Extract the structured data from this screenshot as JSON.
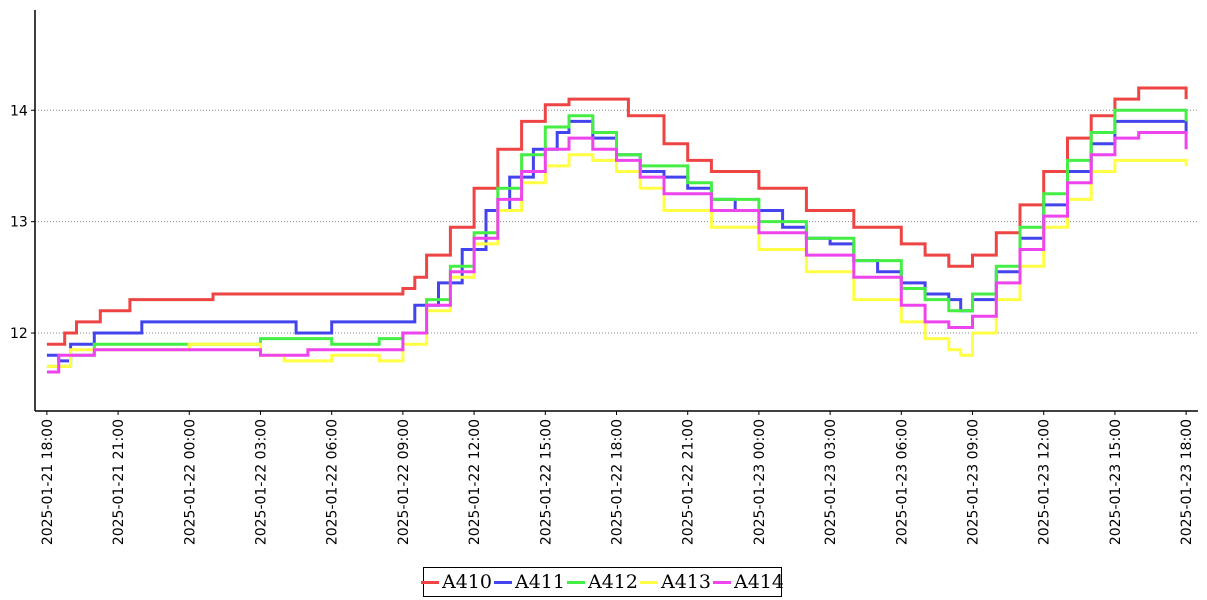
{
  "chart_data": {
    "type": "line",
    "ylim": [
      11.3,
      14.9
    ],
    "yticks": [
      12,
      13,
      14
    ],
    "xlim": [
      "2025-01-21 17:30",
      "2025-01-23 18:30"
    ],
    "xtick_labels": [
      "2025-01-21 18:00",
      "2025-01-21 21:00",
      "2025-01-22 00:00",
      "2025-01-22 03:00",
      "2025-01-22 06:00",
      "2025-01-22 09:00",
      "2025-01-22 12:00",
      "2025-01-22 15:00",
      "2025-01-22 18:00",
      "2025-01-22 21:00",
      "2025-01-23 00:00",
      "2025-01-23 03:00",
      "2025-01-23 06:00",
      "2025-01-23 09:00",
      "2025-01-23 12:00",
      "2025-01-23 15:00",
      "2025-01-23 18:00"
    ],
    "grid": "horizontal dotted",
    "legend_position": "bottom-center",
    "series": [
      {
        "name": "A410",
        "color": "#ee4444",
        "points": [
          [
            "2025-01-21 18:00",
            11.9
          ],
          [
            "2025-01-21 18:45",
            12.0
          ],
          [
            "2025-01-21 19:15",
            12.1
          ],
          [
            "2025-01-21 20:15",
            12.2
          ],
          [
            "2025-01-21 21:30",
            12.3
          ],
          [
            "2025-01-22 01:00",
            12.35
          ],
          [
            "2025-01-22 05:00",
            12.35
          ],
          [
            "2025-01-22 08:00",
            12.35
          ],
          [
            "2025-01-22 09:00",
            12.4
          ],
          [
            "2025-01-22 09:30",
            12.5
          ],
          [
            "2025-01-22 10:00",
            12.7
          ],
          [
            "2025-01-22 11:00",
            12.95
          ],
          [
            "2025-01-22 12:00",
            13.3
          ],
          [
            "2025-01-22 13:00",
            13.65
          ],
          [
            "2025-01-22 14:00",
            13.9
          ],
          [
            "2025-01-22 15:00",
            14.05
          ],
          [
            "2025-01-22 16:00",
            14.1
          ],
          [
            "2025-01-22 17:30",
            14.1
          ],
          [
            "2025-01-22 18:30",
            13.95
          ],
          [
            "2025-01-22 20:00",
            13.7
          ],
          [
            "2025-01-22 21:00",
            13.55
          ],
          [
            "2025-01-22 22:00",
            13.45
          ],
          [
            "2025-01-23 00:00",
            13.3
          ],
          [
            "2025-01-23 02:00",
            13.1
          ],
          [
            "2025-01-23 04:00",
            12.95
          ],
          [
            "2025-01-23 06:00",
            12.8
          ],
          [
            "2025-01-23 07:00",
            12.7
          ],
          [
            "2025-01-23 08:00",
            12.6
          ],
          [
            "2025-01-23 09:00",
            12.7
          ],
          [
            "2025-01-23 10:00",
            12.9
          ],
          [
            "2025-01-23 11:00",
            13.15
          ],
          [
            "2025-01-23 12:00",
            13.45
          ],
          [
            "2025-01-23 13:00",
            13.75
          ],
          [
            "2025-01-23 14:00",
            13.95
          ],
          [
            "2025-01-23 15:00",
            14.1
          ],
          [
            "2025-01-23 16:00",
            14.2
          ],
          [
            "2025-01-23 17:30",
            14.2
          ],
          [
            "2025-01-23 18:00",
            14.1
          ]
        ]
      },
      {
        "name": "A411",
        "color": "#4444ee",
        "points": [
          [
            "2025-01-21 18:00",
            11.8
          ],
          [
            "2025-01-21 18:30",
            11.75
          ],
          [
            "2025-01-21 19:00",
            11.9
          ],
          [
            "2025-01-21 20:00",
            12.0
          ],
          [
            "2025-01-21 22:00",
            12.1
          ],
          [
            "2025-01-22 04:00",
            12.1
          ],
          [
            "2025-01-22 04:30",
            12.0
          ],
          [
            "2025-01-22 05:00",
            12.0
          ],
          [
            "2025-01-22 06:00",
            12.1
          ],
          [
            "2025-01-22 08:30",
            12.1
          ],
          [
            "2025-01-22 09:30",
            12.25
          ],
          [
            "2025-01-22 10:30",
            12.45
          ],
          [
            "2025-01-22 11:30",
            12.75
          ],
          [
            "2025-01-22 12:30",
            13.1
          ],
          [
            "2025-01-22 13:30",
            13.4
          ],
          [
            "2025-01-22 14:30",
            13.65
          ],
          [
            "2025-01-22 15:30",
            13.8
          ],
          [
            "2025-01-22 16:00",
            13.9
          ],
          [
            "2025-01-22 17:00",
            13.75
          ],
          [
            "2025-01-22 18:00",
            13.6
          ],
          [
            "2025-01-22 19:00",
            13.45
          ],
          [
            "2025-01-22 20:00",
            13.4
          ],
          [
            "2025-01-22 21:00",
            13.3
          ],
          [
            "2025-01-22 22:00",
            13.2
          ],
          [
            "2025-01-22 23:00",
            13.1
          ],
          [
            "2025-01-23 01:00",
            12.95
          ],
          [
            "2025-01-23 02:00",
            12.85
          ],
          [
            "2025-01-23 03:00",
            12.8
          ],
          [
            "2025-01-23 04:00",
            12.65
          ],
          [
            "2025-01-23 05:00",
            12.55
          ],
          [
            "2025-01-23 06:00",
            12.45
          ],
          [
            "2025-01-23 07:00",
            12.35
          ],
          [
            "2025-01-23 08:00",
            12.3
          ],
          [
            "2025-01-23 08:30",
            12.2
          ],
          [
            "2025-01-23 09:00",
            12.3
          ],
          [
            "2025-01-23 10:00",
            12.55
          ],
          [
            "2025-01-23 11:00",
            12.85
          ],
          [
            "2025-01-23 12:00",
            13.15
          ],
          [
            "2025-01-23 13:00",
            13.45
          ],
          [
            "2025-01-23 14:00",
            13.7
          ],
          [
            "2025-01-23 15:00",
            13.9
          ],
          [
            "2025-01-23 17:30",
            13.9
          ],
          [
            "2025-01-23 18:00",
            13.8
          ]
        ]
      },
      {
        "name": "A412",
        "color": "#44ee44",
        "points": [
          [
            "2025-01-21 18:00",
            11.7
          ],
          [
            "2025-01-21 19:00",
            11.8
          ],
          [
            "2025-01-21 20:00",
            11.9
          ],
          [
            "2025-01-22 03:00",
            11.95
          ],
          [
            "2025-01-22 05:00",
            11.95
          ],
          [
            "2025-01-22 06:00",
            11.9
          ],
          [
            "2025-01-22 08:00",
            11.95
          ],
          [
            "2025-01-22 09:00",
            12.0
          ],
          [
            "2025-01-22 10:00",
            12.3
          ],
          [
            "2025-01-22 11:00",
            12.6
          ],
          [
            "2025-01-22 12:00",
            12.9
          ],
          [
            "2025-01-22 13:00",
            13.3
          ],
          [
            "2025-01-22 14:00",
            13.6
          ],
          [
            "2025-01-22 15:00",
            13.85
          ],
          [
            "2025-01-22 16:00",
            13.95
          ],
          [
            "2025-01-22 17:00",
            13.8
          ],
          [
            "2025-01-22 18:00",
            13.6
          ],
          [
            "2025-01-22 19:00",
            13.5
          ],
          [
            "2025-01-22 21:00",
            13.35
          ],
          [
            "2025-01-22 22:00",
            13.2
          ],
          [
            "2025-01-23 00:00",
            13.0
          ],
          [
            "2025-01-23 02:00",
            12.85
          ],
          [
            "2025-01-23 04:00",
            12.65
          ],
          [
            "2025-01-23 06:00",
            12.4
          ],
          [
            "2025-01-23 07:00",
            12.3
          ],
          [
            "2025-01-23 08:00",
            12.2
          ],
          [
            "2025-01-23 09:00",
            12.35
          ],
          [
            "2025-01-23 10:00",
            12.6
          ],
          [
            "2025-01-23 11:00",
            12.95
          ],
          [
            "2025-01-23 12:00",
            13.25
          ],
          [
            "2025-01-23 13:00",
            13.55
          ],
          [
            "2025-01-23 14:00",
            13.8
          ],
          [
            "2025-01-23 15:00",
            14.0
          ],
          [
            "2025-01-23 17:30",
            14.0
          ],
          [
            "2025-01-23 18:00",
            13.9
          ]
        ]
      },
      {
        "name": "A413",
        "color": "#ffff44",
        "points": [
          [
            "2025-01-21 18:00",
            11.7
          ],
          [
            "2025-01-21 19:00",
            11.85
          ],
          [
            "2025-01-22 00:00",
            11.9
          ],
          [
            "2025-01-22 03:00",
            11.8
          ],
          [
            "2025-01-22 04:00",
            11.75
          ],
          [
            "2025-01-22 06:00",
            11.8
          ],
          [
            "2025-01-22 08:00",
            11.75
          ],
          [
            "2025-01-22 09:00",
            11.9
          ],
          [
            "2025-01-22 10:00",
            12.2
          ],
          [
            "2025-01-22 11:00",
            12.5
          ],
          [
            "2025-01-22 12:00",
            12.8
          ],
          [
            "2025-01-22 13:00",
            13.1
          ],
          [
            "2025-01-22 14:00",
            13.35
          ],
          [
            "2025-01-22 15:00",
            13.5
          ],
          [
            "2025-01-22 16:00",
            13.6
          ],
          [
            "2025-01-22 17:00",
            13.55
          ],
          [
            "2025-01-22 18:00",
            13.45
          ],
          [
            "2025-01-22 19:00",
            13.3
          ],
          [
            "2025-01-22 20:00",
            13.1
          ],
          [
            "2025-01-22 22:00",
            12.95
          ],
          [
            "2025-01-23 00:00",
            12.75
          ],
          [
            "2025-01-23 02:00",
            12.55
          ],
          [
            "2025-01-23 04:00",
            12.3
          ],
          [
            "2025-01-23 06:00",
            12.1
          ],
          [
            "2025-01-23 07:00",
            11.95
          ],
          [
            "2025-01-23 08:00",
            11.85
          ],
          [
            "2025-01-23 08:30",
            11.8
          ],
          [
            "2025-01-23 09:00",
            12.0
          ],
          [
            "2025-01-23 10:00",
            12.3
          ],
          [
            "2025-01-23 11:00",
            12.6
          ],
          [
            "2025-01-23 12:00",
            12.95
          ],
          [
            "2025-01-23 13:00",
            13.2
          ],
          [
            "2025-01-23 14:00",
            13.45
          ],
          [
            "2025-01-23 15:00",
            13.55
          ],
          [
            "2025-01-23 17:30",
            13.55
          ],
          [
            "2025-01-23 18:00",
            13.5
          ]
        ]
      },
      {
        "name": "A414",
        "color": "#ee44ee",
        "points": [
          [
            "2025-01-21 18:00",
            11.65
          ],
          [
            "2025-01-21 18:30",
            11.8
          ],
          [
            "2025-01-21 20:00",
            11.85
          ],
          [
            "2025-01-22 02:00",
            11.85
          ],
          [
            "2025-01-22 03:00",
            11.8
          ],
          [
            "2025-01-22 05:00",
            11.85
          ],
          [
            "2025-01-22 08:00",
            11.85
          ],
          [
            "2025-01-22 09:00",
            12.0
          ],
          [
            "2025-01-22 10:00",
            12.25
          ],
          [
            "2025-01-22 11:00",
            12.55
          ],
          [
            "2025-01-22 12:00",
            12.85
          ],
          [
            "2025-01-22 13:00",
            13.2
          ],
          [
            "2025-01-22 14:00",
            13.45
          ],
          [
            "2025-01-22 15:00",
            13.65
          ],
          [
            "2025-01-22 16:00",
            13.75
          ],
          [
            "2025-01-22 17:00",
            13.65
          ],
          [
            "2025-01-22 18:00",
            13.55
          ],
          [
            "2025-01-22 19:00",
            13.4
          ],
          [
            "2025-01-22 20:00",
            13.25
          ],
          [
            "2025-01-22 22:00",
            13.1
          ],
          [
            "2025-01-23 00:00",
            12.9
          ],
          [
            "2025-01-23 02:00",
            12.7
          ],
          [
            "2025-01-23 04:00",
            12.5
          ],
          [
            "2025-01-23 06:00",
            12.25
          ],
          [
            "2025-01-23 07:00",
            12.1
          ],
          [
            "2025-01-23 08:00",
            12.05
          ],
          [
            "2025-01-23 09:00",
            12.15
          ],
          [
            "2025-01-23 10:00",
            12.45
          ],
          [
            "2025-01-23 11:00",
            12.75
          ],
          [
            "2025-01-23 12:00",
            13.05
          ],
          [
            "2025-01-23 13:00",
            13.35
          ],
          [
            "2025-01-23 14:00",
            13.6
          ],
          [
            "2025-01-23 15:00",
            13.75
          ],
          [
            "2025-01-23 16:00",
            13.8
          ],
          [
            "2025-01-23 17:30",
            13.8
          ],
          [
            "2025-01-23 18:00",
            13.65
          ]
        ]
      }
    ]
  }
}
